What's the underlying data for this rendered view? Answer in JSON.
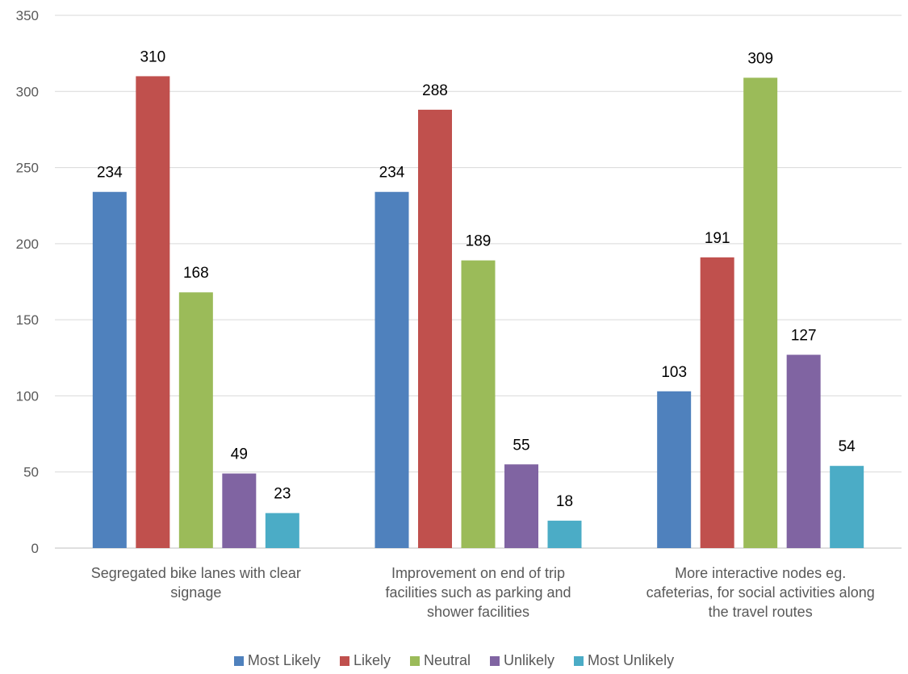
{
  "chart_data": {
    "type": "bar",
    "categories": [
      [
        "Segregated bike lanes with clear",
        "signage"
      ],
      [
        "Improvement on end of trip",
        "facilities such as parking and",
        "shower facilities"
      ],
      [
        "More interactive nodes eg.",
        "cafeterias, for social activities along",
        "the travel routes"
      ]
    ],
    "series": [
      {
        "name": "Most Likely",
        "color": "#4F81BD",
        "values": [
          234,
          234,
          103
        ]
      },
      {
        "name": "Likely",
        "color": "#C0504D",
        "values": [
          310,
          288,
          191
        ]
      },
      {
        "name": "Neutral",
        "color": "#9BBB59",
        "values": [
          168,
          189,
          309
        ]
      },
      {
        "name": "Unlikely",
        "color": "#8064A2",
        "values": [
          49,
          55,
          127
        ]
      },
      {
        "name": "Most Unlikely",
        "color": "#4BACC6",
        "values": [
          23,
          18,
          54
        ]
      }
    ],
    "ylim": [
      0,
      350
    ],
    "yticks": [
      0,
      50,
      100,
      150,
      200,
      250,
      300,
      350
    ],
    "grid": true,
    "legend_position": "bottom"
  }
}
